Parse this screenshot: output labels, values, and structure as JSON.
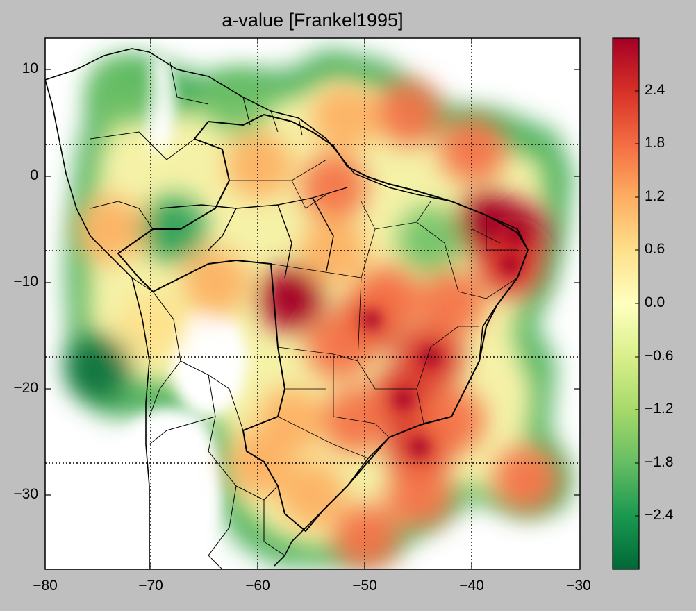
{
  "map": {
    "title": "a-value [Frankel1995]",
    "longitude_ticks": [
      "−80",
      "−70",
      "−60",
      "−50",
      "−40",
      "−30"
    ],
    "latitude_ticks": [
      "10",
      "0",
      "−10",
      "−20",
      "−30"
    ],
    "longitude_range": [
      -80,
      -30
    ],
    "latitude_range": [
      -37,
      13
    ],
    "gridlines": "dotted",
    "region": "South America / Brazil with national and state borders",
    "colormap": "RdYlGn reversed",
    "colorbar": {
      "ticks": [
        "2.4",
        "1.8",
        "1.2",
        "0.6",
        "0.0",
        "−0.6",
        "−1.2",
        "−1.8",
        "−2.4"
      ],
      "range": [
        -2.8,
        2.8
      ],
      "colors": [
        "#006837",
        "#1a9850",
        "#66bd63",
        "#a6d96a",
        "#d9ef8b",
        "#ffffbf",
        "#fee08b",
        "#fdae61",
        "#f46d43",
        "#d73027",
        "#a50026"
      ]
    }
  },
  "chart_data": {
    "type": "heatmap",
    "title": "a-value [Frankel1995]",
    "x_range": [
      -80,
      -30
    ],
    "y_range": [
      -37,
      13
    ],
    "x_ticks": [
      -80,
      -70,
      -60,
      -50,
      -40,
      -30
    ],
    "y_ticks": [
      10,
      0,
      -10,
      -20,
      -30
    ],
    "value_range": [
      -2.8,
      2.8
    ],
    "hotspots": [
      {
        "lon": -57,
        "lat": -11.5,
        "value": 2.8
      },
      {
        "lon": -36,
        "lat": -5.5,
        "value": 2.8
      },
      {
        "lon": -38.5,
        "lat": -4.5,
        "value": 2.6
      },
      {
        "lon": -36.5,
        "lat": -8.3,
        "value": 2.5
      },
      {
        "lon": -49.5,
        "lat": -13.5,
        "value": 2.2
      },
      {
        "lon": -46.5,
        "lat": -21,
        "value": 2.3
      },
      {
        "lon": -44,
        "lat": -17,
        "value": 2.1
      },
      {
        "lon": -45,
        "lat": -25.5,
        "value": 2.0
      },
      {
        "lon": -42,
        "lat": -23,
        "value": 1.9
      },
      {
        "lon": -51,
        "lat": -23,
        "value": 1.7
      },
      {
        "lon": -48,
        "lat": -11.5,
        "value": 1.8
      },
      {
        "lon": -52.5,
        "lat": -16,
        "value": 1.6
      },
      {
        "lon": -53,
        "lat": -1,
        "value": 1.5
      },
      {
        "lon": -60,
        "lat": 1,
        "value": 1.2
      },
      {
        "lon": -40,
        "lat": 2.5,
        "value": 1.6
      },
      {
        "lon": -46,
        "lat": 6,
        "value": 1.5
      },
      {
        "lon": -52,
        "lat": 5.5,
        "value": 1.3
      },
      {
        "lon": -35,
        "lat": -28.5,
        "value": 1.8
      },
      {
        "lon": -74,
        "lat": -5,
        "value": 1.1
      },
      {
        "lon": -64,
        "lat": -10,
        "value": 1.2
      },
      {
        "lon": -50,
        "lat": -34,
        "value": 1.6
      },
      {
        "lon": -55,
        "lat": -30,
        "value": 1.4
      },
      {
        "lon": -57,
        "lat": -23,
        "value": 1.3
      },
      {
        "lon": -60,
        "lat": -27,
        "value": 1.4
      },
      {
        "lon": -45,
        "lat": -30,
        "value": 1.5
      },
      {
        "lon": -53,
        "lat": -7,
        "value": 1.3
      },
      {
        "lon": -42,
        "lat": -12,
        "value": 1.5
      },
      {
        "lon": -70,
        "lat": -14,
        "value": 0.8
      },
      {
        "lon": -75,
        "lat": -18,
        "value": -2.6
      },
      {
        "lon": -73,
        "lat": 8,
        "value": -1.8
      },
      {
        "lon": -62,
        "lat": 7,
        "value": -1.9
      },
      {
        "lon": -68,
        "lat": -5,
        "value": -2.2
      },
      {
        "lon": -44,
        "lat": -6,
        "value": -1.5
      }
    ]
  }
}
